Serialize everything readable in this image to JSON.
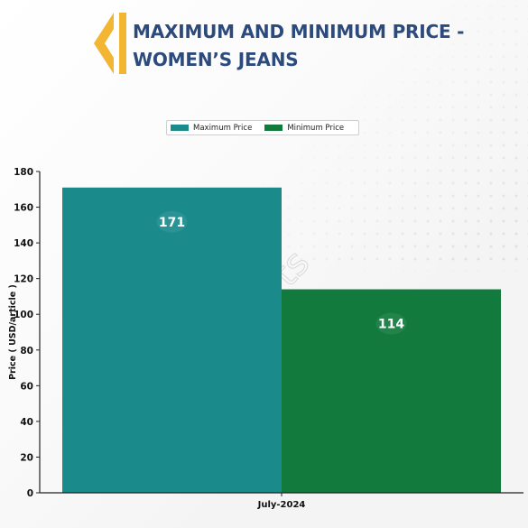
{
  "title": {
    "line1": "MAXIMUM AND MINIMUM PRICE -",
    "line2": "WOMEN’S JEANS"
  },
  "watermark": "DNJ Reports",
  "colors": {
    "title": "#2c4a7c",
    "accent_logo": "#f2b632",
    "max_bar": "#1a8a8a",
    "min_bar": "#117a3c"
  },
  "chart_data": {
    "type": "bar",
    "categories": [
      "July-2024"
    ],
    "series": [
      {
        "name": "Maximum Price",
        "values": [
          171
        ],
        "color": "#1a8a8a"
      },
      {
        "name": "Minimum Price",
        "values": [
          114
        ],
        "color": "#117a3c"
      }
    ],
    "xlabel": "",
    "ylabel": "Price ( USD/article )",
    "ylim": [
      0,
      180
    ],
    "yticks": [
      0,
      20,
      40,
      60,
      80,
      100,
      120,
      140,
      160,
      180
    ],
    "legend_position": "top-center",
    "grid": false
  }
}
